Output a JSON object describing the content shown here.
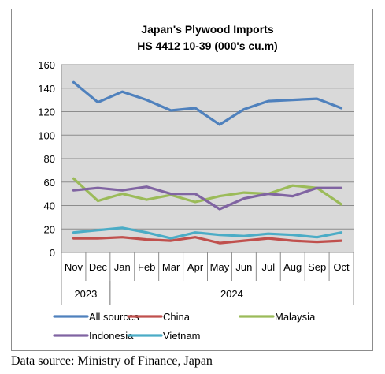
{
  "chart_data": {
    "type": "line",
    "title_lines": [
      "Japan's Plywood Imports",
      "HS 4412 10-39  (000's cu.m)"
    ],
    "categories": [
      "Nov",
      "Dec",
      "Jan",
      "Feb",
      "Mar",
      "Apr",
      "May",
      "Jun",
      "Jul",
      "Aug",
      "Sep",
      "Oct"
    ],
    "year_groups": [
      {
        "label": "2023",
        "start": 0,
        "end": 1
      },
      {
        "label": "2024",
        "start": 2,
        "end": 11
      }
    ],
    "ylim": [
      0,
      160
    ],
    "yticks": [
      0,
      20,
      40,
      60,
      80,
      100,
      120,
      140,
      160
    ],
    "grid": true,
    "legend_position": "bottom",
    "series": [
      {
        "name": "All sources",
        "color": "#4f81bd",
        "values": [
          145,
          128,
          137,
          130,
          121,
          123,
          109,
          122,
          129,
          130,
          131,
          123
        ]
      },
      {
        "name": "China",
        "color": "#c0504d",
        "values": [
          12,
          12,
          13,
          11,
          10,
          13,
          8,
          10,
          12,
          10,
          9,
          10
        ]
      },
      {
        "name": "Malaysia",
        "color": "#9bbb59",
        "values": [
          63,
          44,
          50,
          45,
          49,
          43,
          48,
          51,
          50,
          57,
          55,
          41
        ]
      },
      {
        "name": "Indonesia",
        "color": "#8064a2",
        "values": [
          53,
          55,
          53,
          56,
          50,
          50,
          37,
          46,
          50,
          48,
          55,
          55
        ]
      },
      {
        "name": "Vietnam",
        "color": "#4bacc6",
        "values": [
          17,
          19,
          21,
          17,
          12,
          17,
          15,
          14,
          16,
          15,
          13,
          17
        ]
      }
    ]
  },
  "footer": {
    "source": "Data source: Ministry of Finance, Japan"
  }
}
